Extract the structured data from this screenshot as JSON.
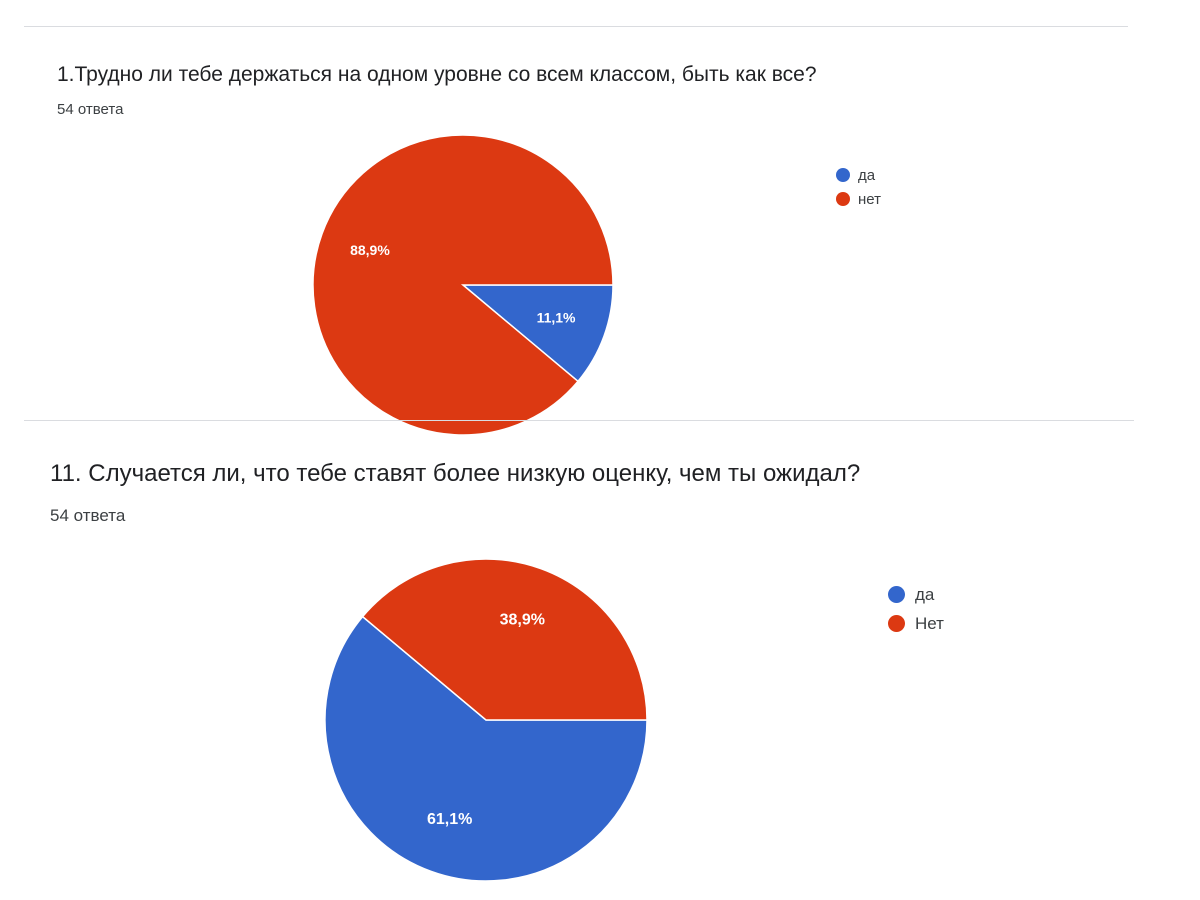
{
  "colors": {
    "blue": "#3366cc",
    "red": "#dc3912",
    "divider": "#dadce0"
  },
  "questions": [
    {
      "title": "1.Трудно ли тебе держаться на одном уровне со всем классом, быть как все?",
      "responses": "54 ответа"
    },
    {
      "title": "11. Случается ли, что тебе ставят более низкую оценку, чем ты ожидал?",
      "responses": "54 ответа"
    }
  ],
  "chart_data": [
    {
      "type": "pie",
      "title": "1.Трудно ли тебе держаться на одном уровне со всем классом, быть как все?",
      "legend_position": "right",
      "slices": [
        {
          "label": "да",
          "value": 11.1,
          "display": "11,1%",
          "color": "#3366cc"
        },
        {
          "label": "нет",
          "value": 88.9,
          "display": "88,9%",
          "color": "#dc3912"
        }
      ]
    },
    {
      "type": "pie",
      "title": "11. Случается ли, что тебе ставят более низкую оценку, чем ты ожидал?",
      "legend_position": "right",
      "slices": [
        {
          "label": "да",
          "value": 61.1,
          "display": "61,1%",
          "color": "#3366cc"
        },
        {
          "label": "Нет",
          "value": 38.9,
          "display": "38,9%",
          "color": "#dc3912"
        }
      ]
    }
  ]
}
